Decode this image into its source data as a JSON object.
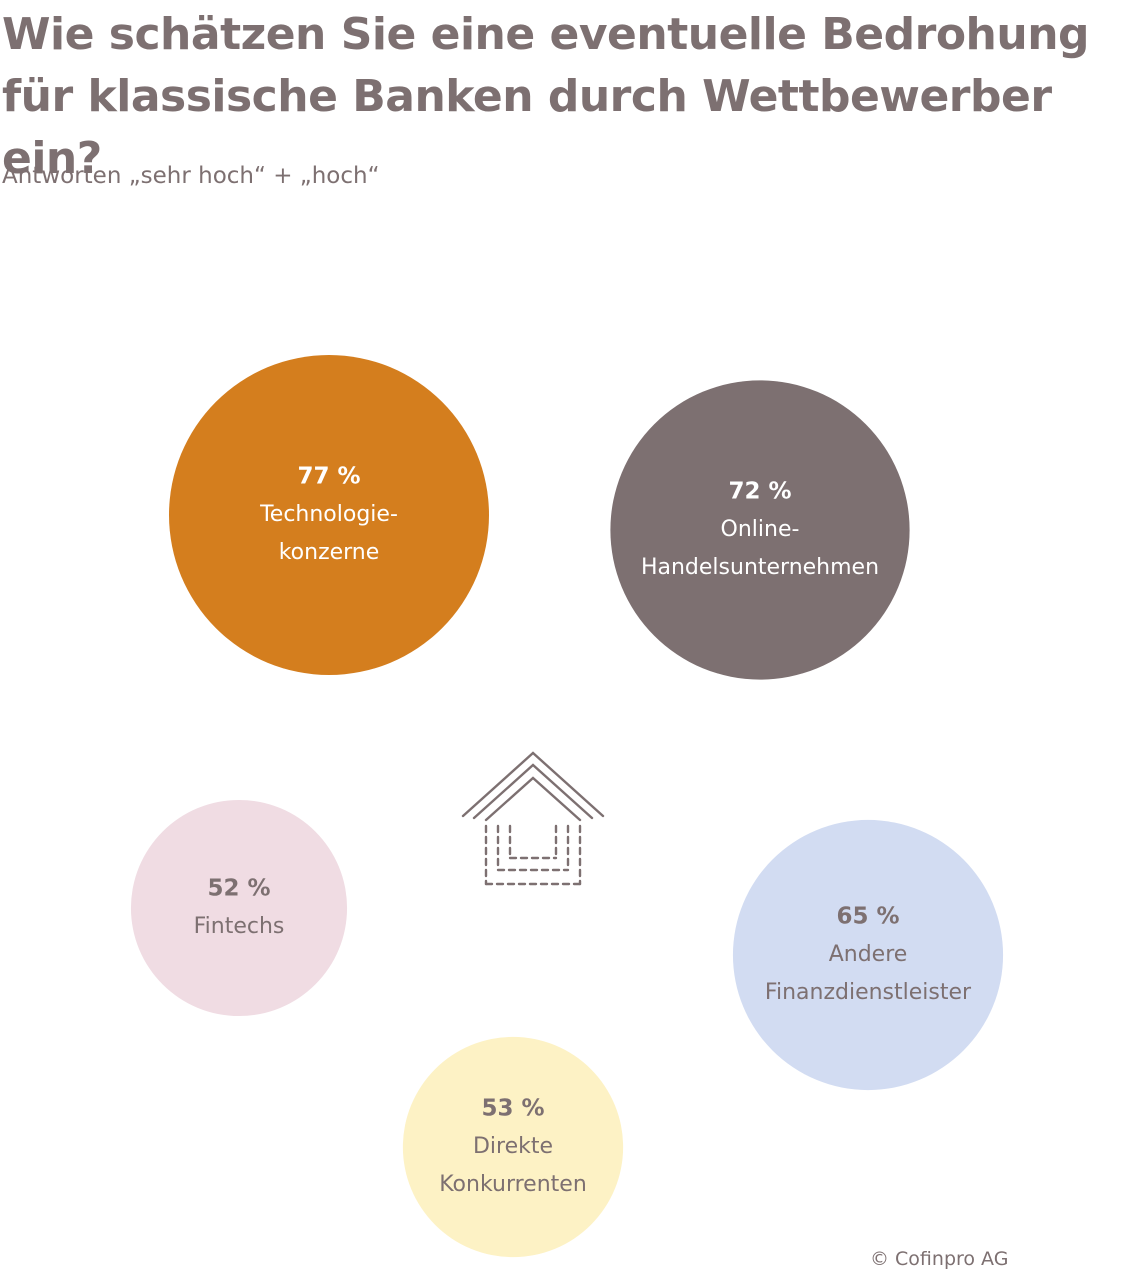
{
  "header": {
    "title_line1": "Wie schätzen Sie eine eventuelle Bedrohung",
    "title_line2": "für klassische Banken durch Wettbewerber ein?",
    "subtitle": "Antworten „sehr hoch“ + „hoch“"
  },
  "chart_data": {
    "type": "bubble",
    "unit": "%",
    "items": [
      {
        "value": 77,
        "value_label": "77 %",
        "label_lines": [
          "Technologie-",
          "konzerne"
        ],
        "color": "#d47e1e",
        "text_color": "#ffffff"
      },
      {
        "value": 72,
        "value_label": "72 %",
        "label_lines": [
          "Online-",
          "Handelsunternehmen"
        ],
        "color": "#7d7071",
        "text_color": "#ffffff"
      },
      {
        "value": 52,
        "value_label": "52 %",
        "label_lines": [
          "Fintechs"
        ],
        "color": "#f0dce3",
        "text_color": "#7d7071"
      },
      {
        "value": 65,
        "value_label": "65 %",
        "label_lines": [
          "Andere",
          "Finanzdienstleister"
        ],
        "color": "#d2dcf2",
        "text_color": "#7d7071"
      },
      {
        "value": 53,
        "value_label": "53 %",
        "label_lines": [
          "Direkte",
          "Konkurrenten"
        ],
        "color": "#fdf2c5",
        "text_color": "#7d7071"
      }
    ],
    "center_icon": "bank-house-icon",
    "icon_color": "#7d7071"
  },
  "footer": {
    "credit": "© Cofinpro AG"
  }
}
